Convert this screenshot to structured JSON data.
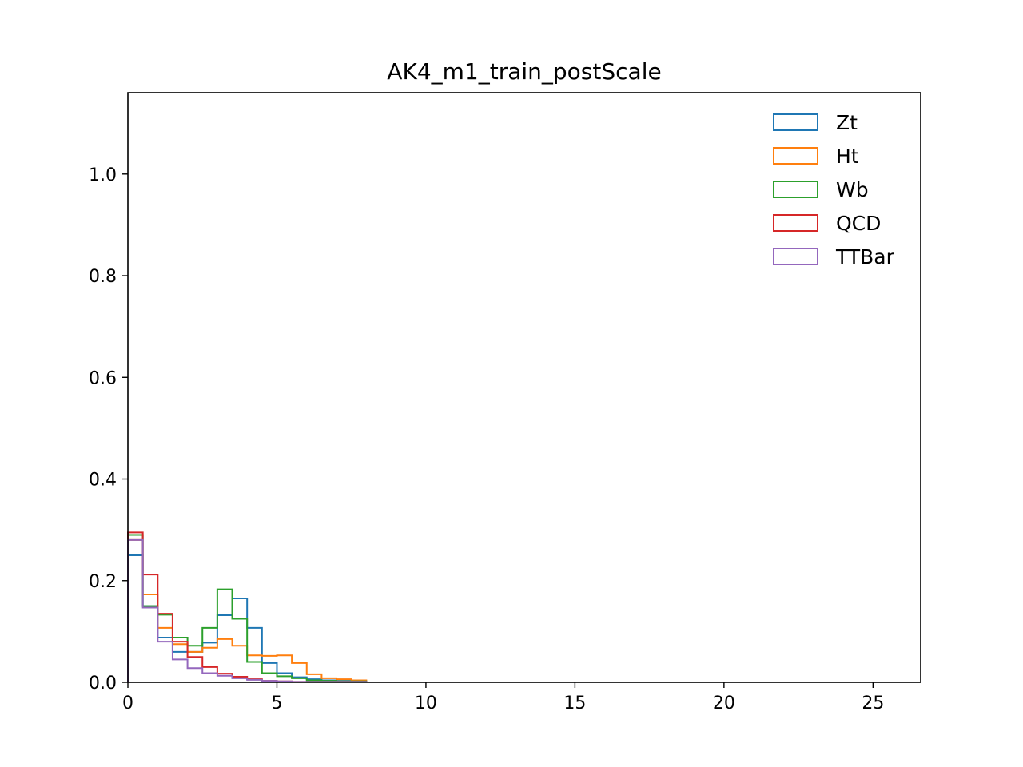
{
  "chart_data": {
    "type": "line",
    "style": "step-histogram",
    "title": "AK4_m1_train_postScale",
    "xlabel": "",
    "ylabel": "",
    "xlim": [
      0,
      26.6
    ],
    "ylim": [
      0,
      1.16
    ],
    "x_ticks": [
      0,
      5,
      10,
      15,
      20,
      25
    ],
    "x_tick_labels": [
      "0",
      "5",
      "10",
      "15",
      "20",
      "25"
    ],
    "y_ticks": [
      0.0,
      0.2,
      0.4,
      0.6,
      0.8,
      1.0
    ],
    "y_tick_labels": [
      "0.0",
      "0.2",
      "0.4",
      "0.6",
      "0.8",
      "1.0"
    ],
    "grid": false,
    "legend_position": "top-right",
    "bin_edges": [
      0,
      0.5,
      1.0,
      1.5,
      2.0,
      2.5,
      3.0,
      3.5,
      4.0,
      4.5,
      5.0,
      5.5,
      6.0,
      6.5,
      7.0,
      7.5,
      8.0
    ],
    "series": [
      {
        "name": "Zt",
        "color": "#1f77b4",
        "values": [
          0.25,
          0.15,
          0.088,
          0.06,
          0.06,
          0.078,
          0.132,
          0.165,
          0.107,
          0.038,
          0.018,
          0.01,
          0.006,
          0.004,
          0.003,
          0.002
        ]
      },
      {
        "name": "Ht",
        "color": "#ff7f0e",
        "values": [
          0.28,
          0.173,
          0.107,
          0.075,
          0.06,
          0.068,
          0.085,
          0.072,
          0.053,
          0.052,
          0.053,
          0.038,
          0.016,
          0.008,
          0.006,
          0.004
        ]
      },
      {
        "name": "Wb",
        "color": "#2ca02c",
        "values": [
          0.29,
          0.15,
          0.133,
          0.088,
          0.072,
          0.107,
          0.183,
          0.125,
          0.04,
          0.018,
          0.012,
          0.008,
          0.004,
          0.003,
          0.002,
          0.002
        ]
      },
      {
        "name": "QCD",
        "color": "#d62728",
        "values": [
          0.295,
          0.212,
          0.135,
          0.08,
          0.05,
          0.03,
          0.017,
          0.011,
          0.006,
          0.003,
          0.002,
          0.001,
          0.001,
          0.001,
          0.001,
          0.001
        ]
      },
      {
        "name": "TTBar",
        "color": "#9467bd",
        "values": [
          0.28,
          0.147,
          0.08,
          0.045,
          0.028,
          0.018,
          0.013,
          0.008,
          0.005,
          0.003,
          0.002,
          0.001,
          0.001,
          0.001,
          0.001,
          0.001
        ]
      }
    ]
  }
}
